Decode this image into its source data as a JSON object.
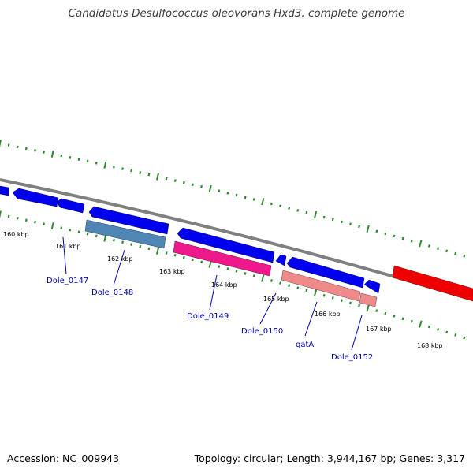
{
  "title": "Candidatus Desulfococcus oleovorans Hxd3, complete genome",
  "footer": {
    "accession": "Accession: NC_009943",
    "topology": "Topology: circular; Length: 3,944,167 bp; Genes: 3,317"
  },
  "colors": {
    "backbone": "#808080",
    "cds": "#0000ee",
    "rRNA": "#4f86b3",
    "tRNA_like": "#ee1a8c",
    "gene_pink": "#ef8a8a",
    "highlight": "#ee0000",
    "tick": "#2a8a2a",
    "gene_label": "#0000aa"
  },
  "scale": {
    "unit": "kbp",
    "labels": [
      "160 kbp",
      "161 kbp",
      "162 kbp",
      "163 kbp",
      "164 kbp",
      "165 kbp",
      "166 kbp",
      "167 kbp",
      "168 kbp"
    ]
  },
  "gene_labels": [
    "Dole_0147",
    "Dole_0148",
    "Dole_0149",
    "Dole_0150",
    "gatA",
    "Dole_0152"
  ]
}
